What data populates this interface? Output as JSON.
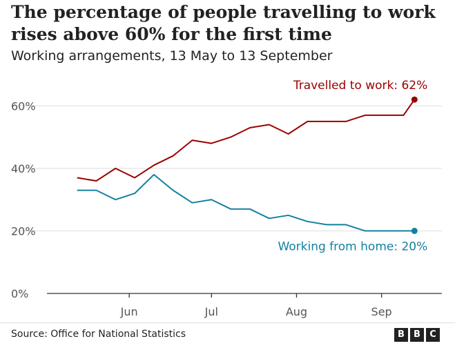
{
  "header": {
    "title": "The percentage of people travelling to work rises above 60% for the first time",
    "subtitle": "Working arrangements, 13 May to 13 September"
  },
  "footer": {
    "source": "Source: Office for National Statistics",
    "logo_letters": [
      "B",
      "B",
      "C"
    ]
  },
  "colors": {
    "travelled": "#990000",
    "home": "#1380A1",
    "grid": "#dddddd",
    "axis": "#333333"
  },
  "chart_data": {
    "type": "line",
    "title": "The percentage of people travelling to work rises above 60% for the first time",
    "subtitle": "Working arrangements, 13 May to 13 September",
    "xlabel": "",
    "ylabel": "",
    "ylim": [
      0,
      70
    ],
    "yticks": [
      {
        "value": 0,
        "label": "0%"
      },
      {
        "value": 20,
        "label": "20%"
      },
      {
        "value": 40,
        "label": "40%"
      },
      {
        "value": 60,
        "label": "60%"
      }
    ],
    "xlim": [
      "2020-05-02",
      "2020-09-23"
    ],
    "xticks": [
      {
        "date": "2020-06-01",
        "label": "Jun"
      },
      {
        "date": "2020-07-01",
        "label": "Jul"
      },
      {
        "date": "2020-08-01",
        "label": "Aug"
      },
      {
        "date": "2020-09-01",
        "label": "Sep"
      }
    ],
    "x": [
      "2020-05-13",
      "2020-05-20",
      "2020-05-27",
      "2020-06-03",
      "2020-06-10",
      "2020-06-17",
      "2020-06-24",
      "2020-07-01",
      "2020-07-08",
      "2020-07-15",
      "2020-07-22",
      "2020-07-29",
      "2020-08-05",
      "2020-08-12",
      "2020-08-19",
      "2020-08-26",
      "2020-09-02",
      "2020-09-09",
      "2020-09-13"
    ],
    "series": [
      {
        "name": "Travelled to work",
        "color": "#990000",
        "end_label": "Travelled to work: 62%",
        "values": [
          37,
          36,
          40,
          37,
          41,
          44,
          49,
          48,
          50,
          53,
          54,
          51,
          55,
          55,
          55,
          57,
          57,
          57,
          62
        ]
      },
      {
        "name": "Working from home",
        "color": "#1380A1",
        "end_label": "Working from home: 20%",
        "values": [
          33,
          33,
          30,
          32,
          38,
          33,
          29,
          30,
          27,
          27,
          24,
          25,
          23,
          22,
          22,
          20,
          20,
          20,
          20
        ]
      }
    ],
    "grid": true,
    "legend": "direct labels at line ends"
  }
}
